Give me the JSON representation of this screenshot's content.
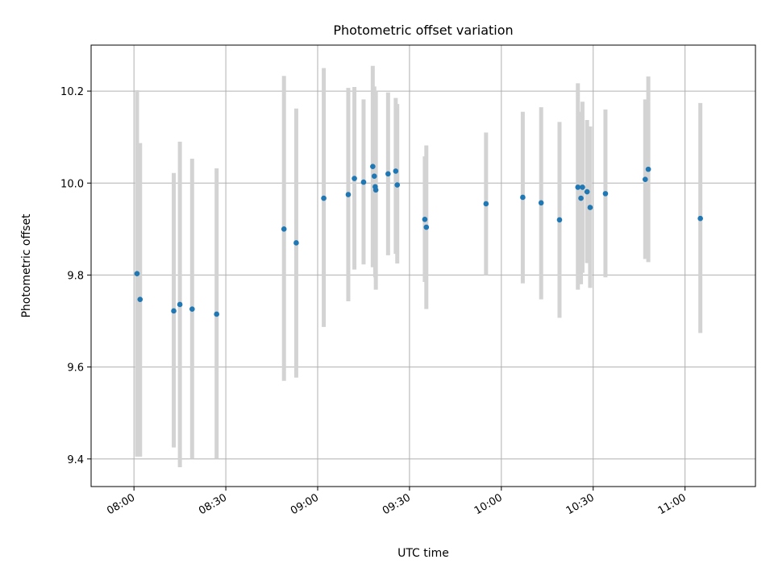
{
  "chart_data": {
    "type": "scatter",
    "title": "Photometric offset variation",
    "xlabel": "UTC time",
    "ylabel": "Photometric offset",
    "xlim": [
      "07:46",
      "11:23"
    ],
    "ylim": [
      9.34,
      10.3
    ],
    "xticks": [
      "08:00",
      "08:30",
      "09:00",
      "09:30",
      "10:00",
      "10:30",
      "11:00"
    ],
    "yticks": [
      9.4,
      9.6,
      9.8,
      10.0,
      10.2
    ],
    "grid": true,
    "colors": {
      "points": "#1f77b4",
      "errorbars": "#d3d3d3",
      "grid": "#b0b0b0"
    },
    "points": [
      {
        "x": "08:01",
        "y": 9.803,
        "ylow": 9.405,
        "yhigh": 10.202
      },
      {
        "x": "08:02",
        "y": 9.747,
        "ylow": 9.405,
        "yhigh": 10.087
      },
      {
        "x": "08:13",
        "y": 9.722,
        "ylow": 9.425,
        "yhigh": 10.022
      },
      {
        "x": "08:15",
        "y": 9.736,
        "ylow": 9.382,
        "yhigh": 10.09
      },
      {
        "x": "08:19",
        "y": 9.726,
        "ylow": 9.4,
        "yhigh": 10.053
      },
      {
        "x": "08:27",
        "y": 9.715,
        "ylow": 9.4,
        "yhigh": 10.032
      },
      {
        "x": "08:49",
        "y": 9.9,
        "ylow": 9.57,
        "yhigh": 10.233
      },
      {
        "x": "08:53",
        "y": 9.87,
        "ylow": 9.577,
        "yhigh": 10.162
      },
      {
        "x": "09:02",
        "y": 9.967,
        "ylow": 9.687,
        "yhigh": 10.25
      },
      {
        "x": "09:10",
        "y": 9.975,
        "ylow": 9.743,
        "yhigh": 10.207
      },
      {
        "x": "09:12",
        "y": 10.01,
        "ylow": 9.812,
        "yhigh": 10.209
      },
      {
        "x": "09:15",
        "y": 10.002,
        "ylow": 9.823,
        "yhigh": 10.182
      },
      {
        "x": "09:18",
        "y": 10.036,
        "ylow": 9.817,
        "yhigh": 10.255
      },
      {
        "x": "09:18.5",
        "y": 10.015,
        "ylow": 9.833,
        "yhigh": 10.21
      },
      {
        "x": "09:18.8",
        "y": 9.992,
        "ylow": 9.795,
        "yhigh": 10.2
      },
      {
        "x": "09:19",
        "y": 9.985,
        "ylow": 9.768,
        "yhigh": 10.2
      },
      {
        "x": "09:23",
        "y": 10.02,
        "ylow": 9.843,
        "yhigh": 10.197
      },
      {
        "x": "09:25.5",
        "y": 10.026,
        "ylow": 9.846,
        "yhigh": 10.185
      },
      {
        "x": "09:26",
        "y": 9.996,
        "ylow": 9.825,
        "yhigh": 10.172
      },
      {
        "x": "09:35",
        "y": 9.921,
        "ylow": 9.785,
        "yhigh": 10.058
      },
      {
        "x": "09:35.5",
        "y": 9.904,
        "ylow": 9.726,
        "yhigh": 10.082
      },
      {
        "x": "09:55",
        "y": 9.955,
        "ylow": 9.8,
        "yhigh": 10.11
      },
      {
        "x": "10:07",
        "y": 9.969,
        "ylow": 9.782,
        "yhigh": 10.155
      },
      {
        "x": "10:13",
        "y": 9.957,
        "ylow": 9.747,
        "yhigh": 10.165
      },
      {
        "x": "10:19",
        "y": 9.92,
        "ylow": 9.707,
        "yhigh": 10.133
      },
      {
        "x": "10:25",
        "y": 9.991,
        "ylow": 9.768,
        "yhigh": 10.217
      },
      {
        "x": "10:26",
        "y": 9.967,
        "ylow": 9.78,
        "yhigh": 10.155
      },
      {
        "x": "10:26.5",
        "y": 9.991,
        "ylow": 9.805,
        "yhigh": 10.177
      },
      {
        "x": "10:28",
        "y": 9.981,
        "ylow": 9.826,
        "yhigh": 10.137
      },
      {
        "x": "10:29",
        "y": 9.947,
        "ylow": 9.772,
        "yhigh": 10.123
      },
      {
        "x": "10:34",
        "y": 9.977,
        "ylow": 9.795,
        "yhigh": 10.16
      },
      {
        "x": "10:47",
        "y": 10.008,
        "ylow": 9.835,
        "yhigh": 10.182
      },
      {
        "x": "10:48",
        "y": 10.03,
        "ylow": 9.828,
        "yhigh": 10.232
      },
      {
        "x": "11:05",
        "y": 9.923,
        "ylow": 9.674,
        "yhigh": 10.174
      }
    ]
  }
}
